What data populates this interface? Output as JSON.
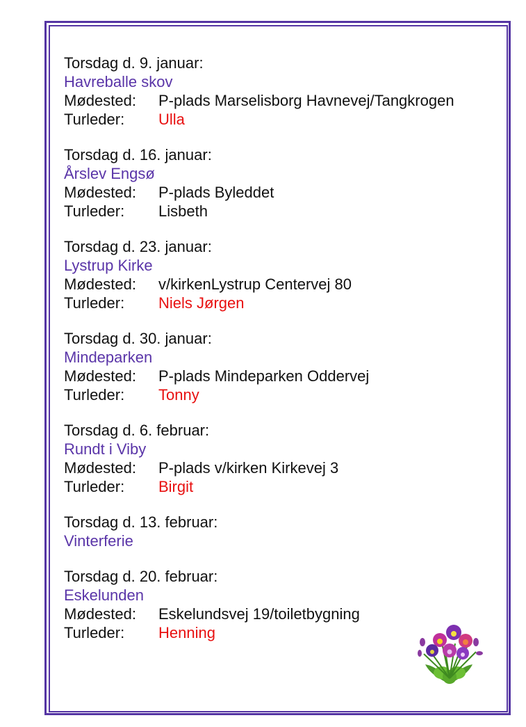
{
  "labels": {
    "meeting": "Mødested:",
    "leader": "Turleder:"
  },
  "colors": {
    "border": "#5535a3",
    "place": "#5a35a8",
    "leader_highlight": "#e81010"
  },
  "entries": [
    {
      "date": "Torsdag d. 9. januar:",
      "place": "Havreballe skov",
      "meeting": "P-plads Marselisborg Havnevej/Tangkrogen",
      "leader": "Ulla",
      "leader_red": true
    },
    {
      "date": "Torsdag d. 16. januar:",
      "place": "Årslev Engsø",
      "meeting": "P-plads Byleddet",
      "leader": "Lisbeth",
      "leader_red": false
    },
    {
      "date": "Torsdag d. 23. januar:",
      "place": "Lystrup Kirke",
      "meeting": "v/kirkenLystrup Centervej 80",
      "leader": "Niels Jørgen",
      "leader_red": true
    },
    {
      "date": "Torsdag d. 30. januar:",
      "place": "Mindeparken",
      "meeting": "P-plads Mindeparken Oddervej",
      "leader": "Tonny",
      "leader_red": true
    },
    {
      "date": "Torsdag d. 6. februar:",
      "place": "Rundt i Viby",
      "meeting": "P-plads v/kirken Kirkevej 3",
      "leader": "Birgit",
      "leader_red": true
    },
    {
      "date": "Torsdag d. 13. februar:",
      "place": "Vinterferie"
    },
    {
      "date": "Torsdag d. 20. februar:",
      "place": "Eskelunden",
      "meeting": "Eskelundsvej 19/toiletbygning",
      "leader": "Henning",
      "leader_red": true
    }
  ],
  "decoration": {
    "icon": "pansy-flowers-icon"
  }
}
